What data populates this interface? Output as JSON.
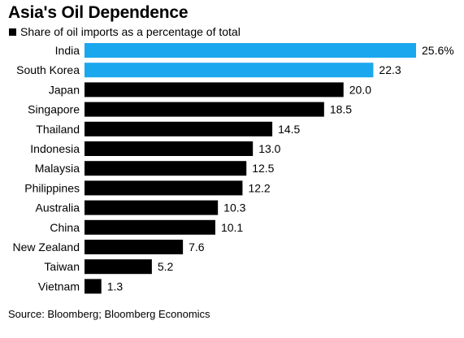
{
  "title": "Asia's Oil Dependence",
  "legend_label": "Share of oil imports as a percentage of total",
  "source": "Source: Bloomberg; Bloomberg Economics",
  "colors": {
    "highlight": "#1aa7ee",
    "default": "#000000"
  },
  "chart_data": {
    "type": "bar",
    "orientation": "horizontal",
    "title": "Asia's Oil Dependence",
    "xlim": [
      0,
      25.6
    ],
    "grid": false,
    "categories": [
      "India",
      "South Korea",
      "Japan",
      "Singapore",
      "Thailand",
      "Indonesia",
      "Malaysia",
      "Philippines",
      "Australia",
      "China",
      "New Zealand",
      "Taiwan",
      "Vietnam"
    ],
    "series": [
      {
        "name": "Share of oil imports as a percentage of total",
        "values": [
          25.6,
          22.3,
          20.0,
          18.5,
          14.5,
          13.0,
          12.5,
          12.2,
          10.3,
          10.1,
          7.6,
          5.2,
          1.3
        ],
        "labels": [
          "25.6%",
          "22.3",
          "20.0",
          "18.5",
          "14.5",
          "13.0",
          "12.5",
          "12.2",
          "10.3",
          "10.1",
          "7.6",
          "5.2",
          "1.3"
        ],
        "highlighted": [
          true,
          true,
          false,
          false,
          false,
          false,
          false,
          false,
          false,
          false,
          false,
          false,
          false
        ]
      }
    ]
  }
}
